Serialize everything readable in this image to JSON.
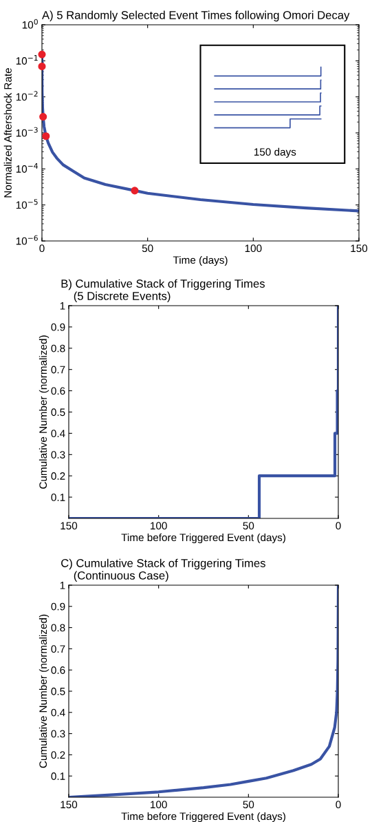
{
  "chart_data": [
    {
      "type": "line",
      "title": "A) 5 Randomly Selected Event Times following Omori Decay",
      "annotations": [
        "150 days"
      ],
      "xlabel": "Time (days)",
      "ylabel": "Normalized Aftershock Rate",
      "log": "y",
      "xlim": [
        0,
        150
      ],
      "xticks": [
        0,
        50,
        100,
        150
      ],
      "ylim": [
        1e-06,
        1
      ],
      "yticks": [
        {
          "value": 1e-06,
          "label": "10$^{−6}$"
        },
        {
          "value": 1e-05,
          "label": "10$^{−5}$"
        },
        {
          "value": 0.0001,
          "label": "10$^{−4}$"
        },
        {
          "value": 0.001,
          "label": "10$^{−3}$"
        },
        {
          "value": 0.01,
          "label": "10$^{−2}$"
        },
        {
          "value": 0.1,
          "label": "10$^{−1}$"
        },
        {
          "value": 1,
          "label": "10$^{0}$"
        }
      ],
      "series": [
        {
          "type": "line",
          "color": "#3953a4",
          "x": [
            0,
            0.02,
            0.1,
            0.3,
            0.55,
            1,
            1.9,
            3,
            5,
            7,
            10,
            15,
            20,
            30,
            44,
            50,
            75,
            100,
            125,
            150
          ],
          "values": [
            0.15,
            0.07,
            0.013,
            0.005,
            0.0028,
            0.0015,
            0.00081,
            0.00052,
            0.00029,
            0.0002,
            0.00013,
            8.5e-05,
            5.6e-05,
            3.7e-05,
            2.5e-05,
            2.1e-05,
            1.4e-05,
            1.03e-05,
            8.2e-06,
            6.8e-06
          ]
        },
        {
          "type": "scatter",
          "color": "#e8202a",
          "marker": "circle",
          "x": [
            0,
            0,
            0.55,
            1.9,
            43.9
          ],
          "values": [
            0.15,
            0.07,
            0.0028,
            0.00081,
            2.5e-05
          ]
        }
      ]
    },
    {
      "type": "step",
      "title": "B) Cumulative Stack of Triggering Times\n    (5 Discrete Events)",
      "xlabel": "Time before Triggered Event (days)",
      "ylabel": "Cumulative Number (normalized)",
      "xlim": [
        150,
        0
      ],
      "xticks": [
        150,
        100,
        50,
        0
      ],
      "ylim": [
        0,
        1
      ],
      "yticks": [
        0.1,
        0.2,
        0.3,
        0.4,
        0.5,
        0.6,
        0.7,
        0.8,
        0.9,
        1
      ],
      "series": [
        {
          "color": "#3953a4",
          "x": [
            150,
            44,
            1.9,
            0.55,
            0.02,
            0
          ],
          "values": [
            0,
            0.2,
            0.4,
            0.6,
            0.8,
            1
          ]
        }
      ]
    },
    {
      "type": "line",
      "title": "C) Cumulative Stack of Triggering Times\n    (Continuous Case)",
      "xlabel": "Time before Triggered Event (days)",
      "ylabel": "Cumulative Number (normalized)",
      "xlim": [
        150,
        0
      ],
      "xticks": [
        150,
        100,
        50,
        0
      ],
      "ylim": [
        0,
        1
      ],
      "yticks": [
        0.1,
        0.2,
        0.3,
        0.4,
        0.5,
        0.6,
        0.7,
        0.8,
        0.9,
        1
      ],
      "series": [
        {
          "color": "#3953a4",
          "x": [
            150,
            125,
            100,
            75,
            60,
            50,
            40,
            25,
            15,
            10,
            5,
            2,
            1,
            0.5,
            0.2,
            0
          ],
          "values": [
            0,
            0.012,
            0.025,
            0.045,
            0.06,
            0.075,
            0.09,
            0.126,
            0.155,
            0.18,
            0.24,
            0.33,
            0.4,
            0.5,
            0.65,
            1
          ]
        }
      ]
    }
  ]
}
